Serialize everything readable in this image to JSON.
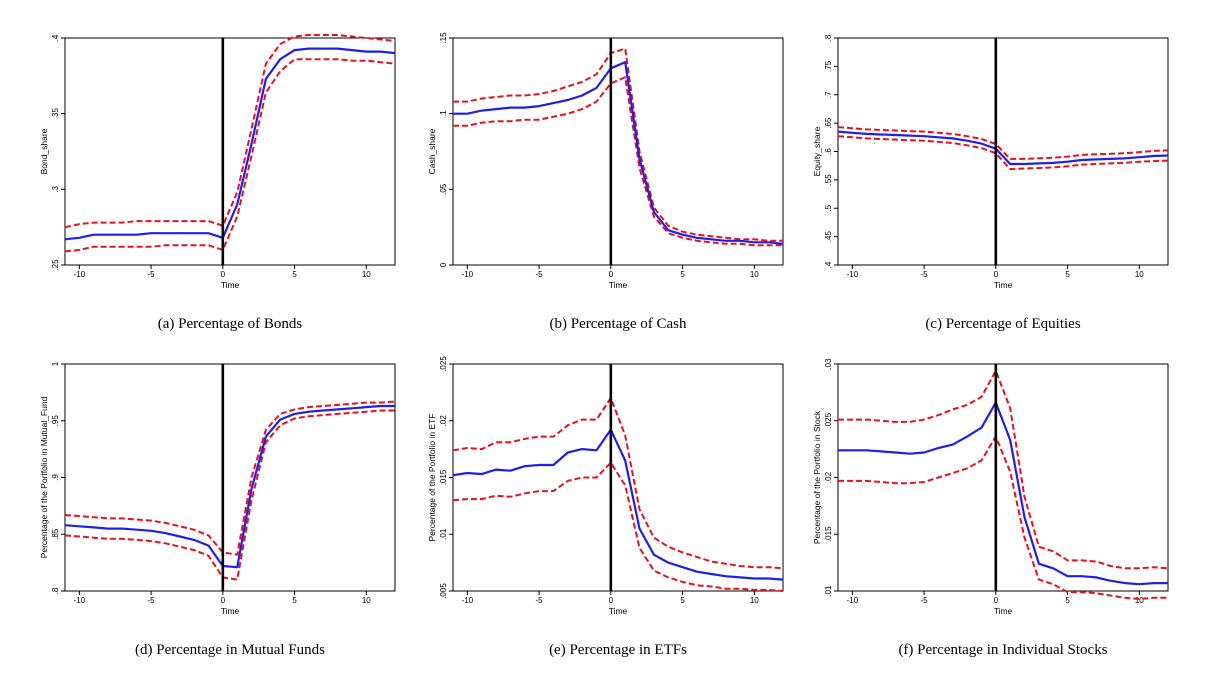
{
  "figure": {
    "colors": {
      "estimate": "#1f1fe8",
      "ci": "#e8101e",
      "event_line": "#000000",
      "frame": "#000000"
    }
  },
  "chart_data": [
    {
      "id": "a",
      "type": "line",
      "caption": "(a) Percentage of Bonds",
      "xlabel": "Time",
      "ylabel": "Bond_share",
      "xlim": [
        -11,
        12
      ],
      "ylim": [
        0.25,
        0.4
      ],
      "xticks": [
        -10,
        -5,
        0,
        5,
        10
      ],
      "xtick_labels": [
        "-10",
        "-5",
        "0",
        "5",
        "10"
      ],
      "yticks": [
        0.25,
        0.3,
        0.35,
        0.4
      ],
      "ytick_labels": [
        ".25",
        ".3",
        ".35",
        ".4"
      ],
      "event_x": 0,
      "x": [
        -11,
        -10,
        -9,
        -8,
        -7,
        -6,
        -5,
        -4,
        -3,
        -2,
        -1,
        0,
        1,
        2,
        3,
        4,
        5,
        6,
        7,
        8,
        9,
        10,
        11,
        12
      ],
      "series": [
        {
          "name": "Estimate",
          "style": "solid",
          "values": [
            0.267,
            0.268,
            0.27,
            0.27,
            0.27,
            0.27,
            0.271,
            0.271,
            0.271,
            0.271,
            0.271,
            0.268,
            0.29,
            0.33,
            0.373,
            0.386,
            0.392,
            0.393,
            0.393,
            0.393,
            0.392,
            0.391,
            0.391,
            0.39
          ]
        },
        {
          "name": "Upper CI",
          "style": "dashed",
          "values": [
            0.275,
            0.277,
            0.278,
            0.278,
            0.278,
            0.279,
            0.279,
            0.279,
            0.279,
            0.279,
            0.279,
            0.276,
            0.298,
            0.34,
            0.383,
            0.396,
            0.401,
            0.402,
            0.402,
            0.402,
            0.401,
            0.4,
            0.399,
            0.398
          ]
        },
        {
          "name": "Lower CI",
          "style": "dashed",
          "values": [
            0.259,
            0.26,
            0.262,
            0.262,
            0.262,
            0.262,
            0.262,
            0.263,
            0.263,
            0.263,
            0.263,
            0.26,
            0.282,
            0.322,
            0.364,
            0.378,
            0.386,
            0.386,
            0.386,
            0.386,
            0.385,
            0.385,
            0.384,
            0.383
          ]
        }
      ]
    },
    {
      "id": "b",
      "type": "line",
      "caption": "(b) Percentage of Cash",
      "xlabel": "Time",
      "ylabel": "Cash_share",
      "xlim": [
        -11,
        12
      ],
      "ylim": [
        0,
        0.15
      ],
      "xticks": [
        -10,
        -5,
        0,
        5,
        10
      ],
      "xtick_labels": [
        "-10",
        "-5",
        "0",
        "5",
        "10"
      ],
      "yticks": [
        0,
        0.05,
        0.1,
        0.15
      ],
      "ytick_labels": [
        "0",
        ".05",
        ".1",
        ".15"
      ],
      "event_x": 0,
      "x": [
        -11,
        -10,
        -9,
        -8,
        -7,
        -6,
        -5,
        -4,
        -3,
        -2,
        -1,
        0,
        1,
        2,
        3,
        4,
        5,
        6,
        7,
        8,
        9,
        10,
        11,
        12
      ],
      "series": [
        {
          "name": "Estimate",
          "style": "solid",
          "values": [
            0.1,
            0.1,
            0.102,
            0.103,
            0.104,
            0.104,
            0.105,
            0.107,
            0.109,
            0.112,
            0.117,
            0.13,
            0.134,
            0.07,
            0.035,
            0.023,
            0.02,
            0.018,
            0.017,
            0.016,
            0.016,
            0.015,
            0.015,
            0.014
          ]
        },
        {
          "name": "Upper CI",
          "style": "dashed",
          "values": [
            0.108,
            0.108,
            0.11,
            0.111,
            0.112,
            0.112,
            0.113,
            0.115,
            0.118,
            0.121,
            0.126,
            0.14,
            0.143,
            0.075,
            0.038,
            0.026,
            0.022,
            0.02,
            0.019,
            0.018,
            0.017,
            0.017,
            0.016,
            0.016
          ]
        },
        {
          "name": "Lower CI",
          "style": "dashed",
          "values": [
            0.092,
            0.092,
            0.094,
            0.095,
            0.095,
            0.096,
            0.096,
            0.098,
            0.1,
            0.103,
            0.108,
            0.12,
            0.124,
            0.064,
            0.032,
            0.021,
            0.018,
            0.016,
            0.015,
            0.014,
            0.014,
            0.013,
            0.013,
            0.013
          ]
        }
      ]
    },
    {
      "id": "c",
      "type": "line",
      "caption": "(c) Percentage of Equities",
      "xlabel": "Time",
      "ylabel": "Equity_share",
      "xlim": [
        -11,
        12
      ],
      "ylim": [
        0.4,
        0.8
      ],
      "xticks": [
        -10,
        -5,
        0,
        5,
        10
      ],
      "xtick_labels": [
        "-10",
        "-5",
        "0",
        "5",
        "10"
      ],
      "yticks": [
        0.4,
        0.45,
        0.5,
        0.55,
        0.6,
        0.65,
        0.7,
        0.75,
        0.8
      ],
      "ytick_labels": [
        ".4",
        ".45",
        ".5",
        ".55",
        ".6",
        ".65",
        ".7",
        ".75",
        ".8"
      ],
      "event_x": 0,
      "x": [
        -11,
        -10,
        -9,
        -8,
        -7,
        -6,
        -5,
        -4,
        -3,
        -2,
        -1,
        0,
        1,
        2,
        3,
        4,
        5,
        6,
        7,
        8,
        9,
        10,
        11,
        12
      ],
      "series": [
        {
          "name": "Estimate",
          "style": "solid",
          "values": [
            0.635,
            0.633,
            0.631,
            0.63,
            0.629,
            0.628,
            0.627,
            0.625,
            0.623,
            0.619,
            0.614,
            0.605,
            0.578,
            0.578,
            0.579,
            0.58,
            0.582,
            0.585,
            0.586,
            0.587,
            0.588,
            0.59,
            0.592,
            0.593
          ]
        },
        {
          "name": "Upper CI",
          "style": "dashed",
          "values": [
            0.643,
            0.641,
            0.639,
            0.638,
            0.637,
            0.636,
            0.635,
            0.633,
            0.631,
            0.627,
            0.622,
            0.613,
            0.587,
            0.587,
            0.588,
            0.589,
            0.591,
            0.594,
            0.595,
            0.596,
            0.597,
            0.599,
            0.601,
            0.602
          ]
        },
        {
          "name": "Lower CI",
          "style": "dashed",
          "values": [
            0.627,
            0.625,
            0.623,
            0.622,
            0.621,
            0.62,
            0.619,
            0.617,
            0.615,
            0.611,
            0.606,
            0.597,
            0.569,
            0.57,
            0.571,
            0.572,
            0.574,
            0.577,
            0.578,
            0.579,
            0.58,
            0.582,
            0.583,
            0.584
          ]
        }
      ]
    },
    {
      "id": "d",
      "type": "line",
      "caption": "(d) Percentage in Mutual Funds",
      "xlabel": "Time",
      "ylabel": "Percentage of the Portfolio in Mutual_Fund",
      "xlim": [
        -11,
        12
      ],
      "ylim": [
        0.8,
        1.0
      ],
      "xticks": [
        -10,
        -5,
        0,
        5,
        10
      ],
      "xtick_labels": [
        "-10",
        "-5",
        "0",
        "5",
        "10"
      ],
      "yticks": [
        0.8,
        0.85,
        0.9,
        0.95,
        1.0
      ],
      "ytick_labels": [
        ".8",
        ".85",
        ".9",
        ".95",
        "1"
      ],
      "event_x": 0,
      "x": [
        -11,
        -10,
        -9,
        -8,
        -7,
        -6,
        -5,
        -4,
        -3,
        -2,
        -1,
        0,
        1,
        2,
        3,
        4,
        5,
        6,
        7,
        8,
        9,
        10,
        11,
        12
      ],
      "series": [
        {
          "name": "Estimate",
          "style": "solid",
          "values": [
            0.858,
            0.857,
            0.856,
            0.855,
            0.855,
            0.854,
            0.853,
            0.851,
            0.848,
            0.845,
            0.84,
            0.822,
            0.821,
            0.89,
            0.936,
            0.951,
            0.956,
            0.958,
            0.959,
            0.96,
            0.961,
            0.962,
            0.963,
            0.963
          ]
        },
        {
          "name": "Upper CI",
          "style": "dashed",
          "values": [
            0.867,
            0.866,
            0.865,
            0.864,
            0.864,
            0.863,
            0.862,
            0.86,
            0.857,
            0.854,
            0.849,
            0.834,
            0.832,
            0.9,
            0.942,
            0.956,
            0.96,
            0.962,
            0.963,
            0.964,
            0.965,
            0.966,
            0.966,
            0.967
          ]
        },
        {
          "name": "Lower CI",
          "style": "dashed",
          "values": [
            0.849,
            0.848,
            0.847,
            0.846,
            0.846,
            0.845,
            0.844,
            0.842,
            0.839,
            0.836,
            0.831,
            0.812,
            0.81,
            0.88,
            0.931,
            0.946,
            0.952,
            0.954,
            0.955,
            0.956,
            0.957,
            0.958,
            0.959,
            0.959
          ]
        }
      ]
    },
    {
      "id": "e",
      "type": "line",
      "caption": "(e) Percentage in ETFs",
      "xlabel": "Time",
      "ylabel": "Percentage of the Portfolio in ETF",
      "xlim": [
        -11,
        12
      ],
      "ylim": [
        0.005,
        0.025
      ],
      "xticks": [
        -10,
        -5,
        0,
        5,
        10
      ],
      "xtick_labels": [
        "-10",
        "-5",
        "0",
        "5",
        "10"
      ],
      "yticks": [
        0.005,
        0.01,
        0.015,
        0.02,
        0.025
      ],
      "ytick_labels": [
        ".005",
        ".01",
        ".015",
        ".02",
        ".025"
      ],
      "event_x": 0,
      "x": [
        -11,
        -10,
        -9,
        -8,
        -7,
        -6,
        -5,
        -4,
        -3,
        -2,
        -1,
        0,
        1,
        2,
        3,
        4,
        5,
        6,
        7,
        8,
        9,
        10,
        11,
        12
      ],
      "series": [
        {
          "name": "Estimate",
          "style": "solid",
          "values": [
            0.0152,
            0.0154,
            0.0153,
            0.0157,
            0.0156,
            0.016,
            0.0161,
            0.0161,
            0.0172,
            0.0175,
            0.0174,
            0.0192,
            0.0165,
            0.0105,
            0.0082,
            0.0075,
            0.0071,
            0.0067,
            0.0065,
            0.0063,
            0.0062,
            0.0061,
            0.0061,
            0.006
          ]
        },
        {
          "name": "Upper CI",
          "style": "dashed",
          "values": [
            0.0174,
            0.0176,
            0.0175,
            0.0181,
            0.0181,
            0.0184,
            0.0186,
            0.0186,
            0.0196,
            0.0201,
            0.0201,
            0.022,
            0.0187,
            0.0122,
            0.0097,
            0.0089,
            0.0084,
            0.008,
            0.0076,
            0.0074,
            0.0072,
            0.0071,
            0.0071,
            0.007
          ]
        },
        {
          "name": "Lower CI",
          "style": "dashed",
          "values": [
            0.013,
            0.0131,
            0.0131,
            0.0134,
            0.0133,
            0.0136,
            0.0138,
            0.0138,
            0.0147,
            0.015,
            0.015,
            0.0163,
            0.0143,
            0.0088,
            0.0068,
            0.0062,
            0.0058,
            0.0055,
            0.0054,
            0.0052,
            0.0052,
            0.0051,
            0.0051,
            0.005
          ]
        }
      ]
    },
    {
      "id": "f",
      "type": "line",
      "caption": "(f) Percentage in Individual Stocks",
      "xlabel": "Time",
      "ylabel": "Percentage of the Portfolio in Stock",
      "xlim": [
        -11,
        12
      ],
      "ylim": [
        0.01,
        0.03
      ],
      "xticks": [
        -10,
        -5,
        0,
        5,
        10
      ],
      "xtick_labels": [
        "-10",
        "-5",
        "0",
        "5",
        "10"
      ],
      "yticks": [
        0.01,
        0.015,
        0.02,
        0.025,
        0.03
      ],
      "ytick_labels": [
        ".01",
        ".015",
        ".02",
        ".025",
        ".03"
      ],
      "event_x": 0,
      "x": [
        -11,
        -10,
        -9,
        -8,
        -7,
        -6,
        -5,
        -4,
        -3,
        -2,
        -1,
        0,
        1,
        2,
        3,
        4,
        5,
        6,
        7,
        8,
        9,
        10,
        11,
        12
      ],
      "series": [
        {
          "name": "Estimate",
          "style": "solid",
          "values": [
            0.0224,
            0.0224,
            0.0224,
            0.0223,
            0.0222,
            0.0221,
            0.0222,
            0.0226,
            0.0229,
            0.0236,
            0.0244,
            0.0266,
            0.0233,
            0.0165,
            0.0124,
            0.012,
            0.0113,
            0.0113,
            0.0112,
            0.0109,
            0.0107,
            0.0106,
            0.0107,
            0.0107
          ]
        },
        {
          "name": "Upper CI",
          "style": "dashed",
          "values": [
            0.0251,
            0.0251,
            0.0251,
            0.025,
            0.0249,
            0.0249,
            0.0251,
            0.0255,
            0.026,
            0.0264,
            0.0271,
            0.0294,
            0.0261,
            0.0183,
            0.0139,
            0.0135,
            0.0127,
            0.0127,
            0.0126,
            0.0122,
            0.012,
            0.012,
            0.0121,
            0.012
          ]
        },
        {
          "name": "Lower CI",
          "style": "dashed",
          "values": [
            0.0197,
            0.0197,
            0.0197,
            0.0196,
            0.0195,
            0.0195,
            0.0196,
            0.02,
            0.0204,
            0.0208,
            0.0215,
            0.0236,
            0.0205,
            0.0147,
            0.011,
            0.0106,
            0.0099,
            0.0099,
            0.0098,
            0.0096,
            0.0094,
            0.0093,
            0.0094,
            0.0094
          ]
        }
      ]
    }
  ]
}
